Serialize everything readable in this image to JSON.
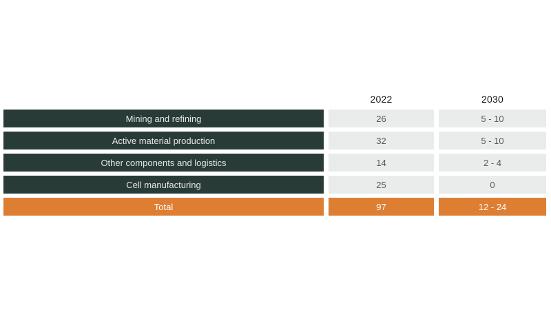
{
  "colors": {
    "dark": "#293b37",
    "orange": "#dd7e33",
    "cell_gray": "#e9eceb",
    "label_text": "#e3e7e5",
    "value_text": "#565b59",
    "header_text": "#111416",
    "total_text": "#ffffff",
    "background": "#ffffff"
  },
  "table": {
    "columns": [
      "2022",
      "2030"
    ],
    "rows": [
      {
        "label": "Mining and refining",
        "values": [
          "26",
          "5 - 10"
        ]
      },
      {
        "label": "Active material production",
        "values": [
          "32",
          "5 - 10"
        ]
      },
      {
        "label": "Other components and logistics",
        "values": [
          "14",
          "2 - 4"
        ]
      },
      {
        "label": "Cell manufacturing",
        "values": [
          "25",
          "0"
        ]
      }
    ],
    "total": {
      "label": "Total",
      "values": [
        "97",
        "12 - 24"
      ]
    }
  },
  "chart_data": {
    "type": "table",
    "title": "",
    "categories": [
      "Mining and refining",
      "Active material production",
      "Other components and logistics",
      "Cell manufacturing",
      "Total"
    ],
    "series": [
      {
        "name": "2022",
        "values": [
          "26",
          "32",
          "14",
          "25",
          "97"
        ]
      },
      {
        "name": "2030",
        "values": [
          "5 - 10",
          "5 - 10",
          "2 - 4",
          "0",
          "12 - 24"
        ]
      }
    ],
    "layout_hints": {
      "row_label_style": "dark-green-bar",
      "total_row_style": "orange-bar",
      "value_cell_style": "light-gray",
      "grid": false,
      "legend": false
    }
  }
}
